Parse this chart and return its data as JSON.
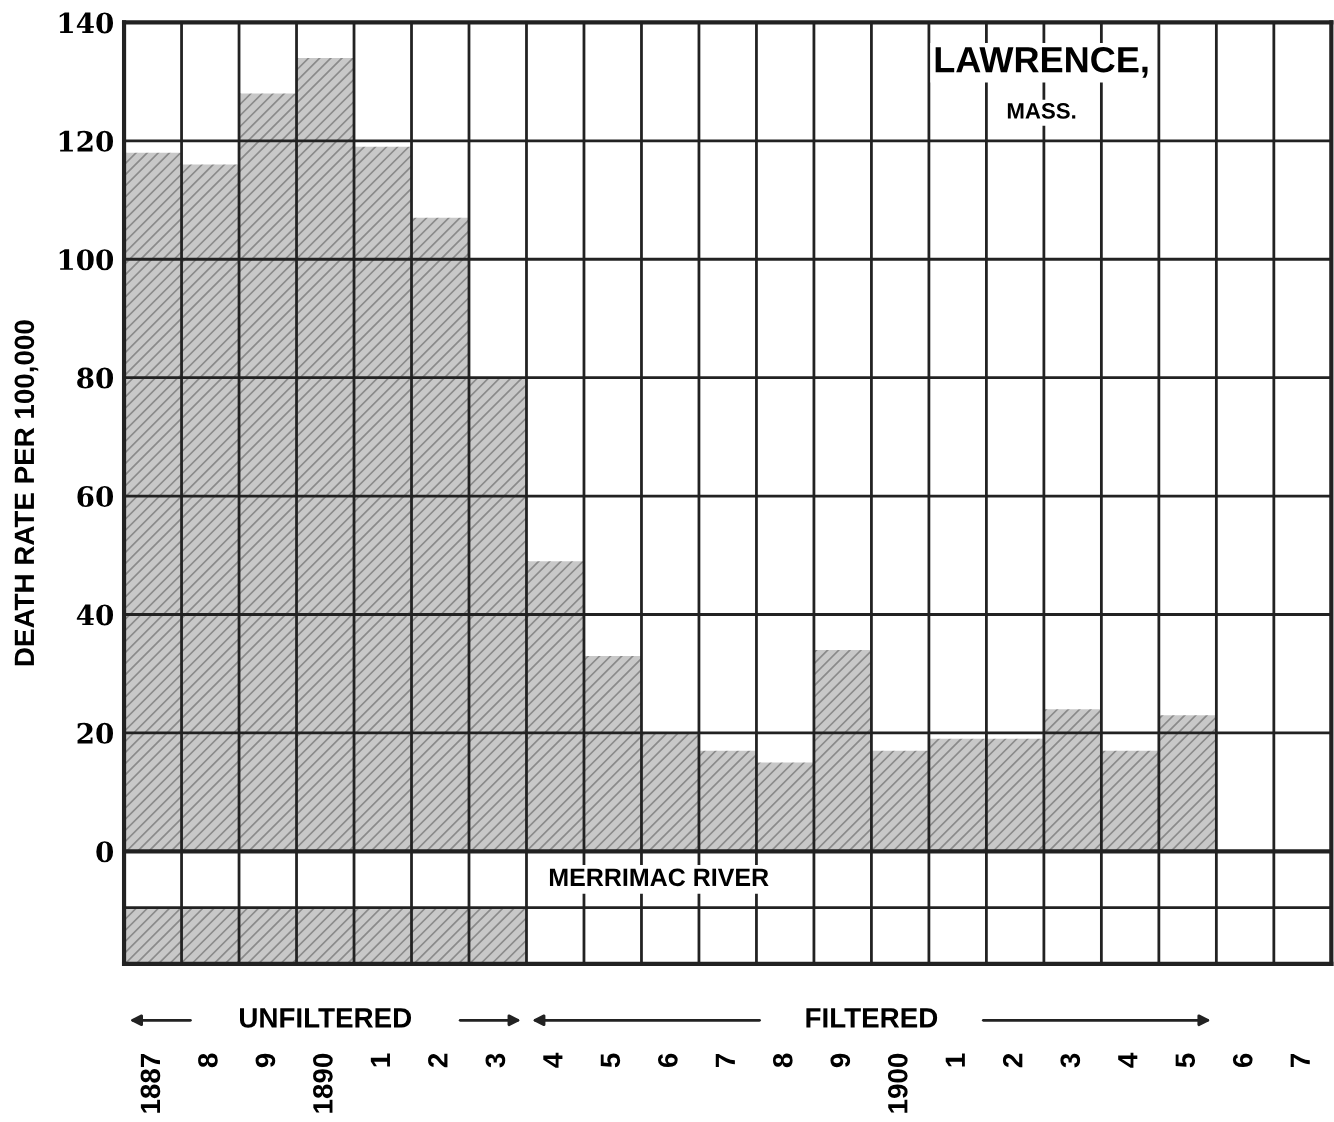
{
  "chart_data": {
    "type": "bar",
    "title": "LAWRENCE,",
    "subtitle": "MASS.",
    "ylabel": "DEATH RATE PER 100,000",
    "categories": [
      "1887",
      "8",
      "9",
      "1890",
      "1",
      "2",
      "3",
      "4",
      "5",
      "6",
      "7",
      "8",
      "9",
      "1900",
      "1",
      "2",
      "3",
      "4",
      "5",
      "6",
      "7"
    ],
    "values": [
      118,
      116,
      128,
      134,
      119,
      107,
      80,
      49,
      33,
      20,
      17,
      15,
      34,
      17,
      19,
      19,
      24,
      17,
      23,
      null,
      null
    ],
    "color": "#c8c8c8",
    "ylim": [
      -19,
      140
    ],
    "yticks": [
      0,
      20,
      40,
      60,
      80,
      100,
      120,
      140
    ],
    "grid": true,
    "annotations": [
      "MERRIMAC RIVER",
      "FILTERED"
    ],
    "bands": [
      {
        "axis": "x",
        "from": "1887",
        "to": "3",
        "label": "UNFILTERED",
        "color": "#c8c8c8"
      }
    ]
  }
}
